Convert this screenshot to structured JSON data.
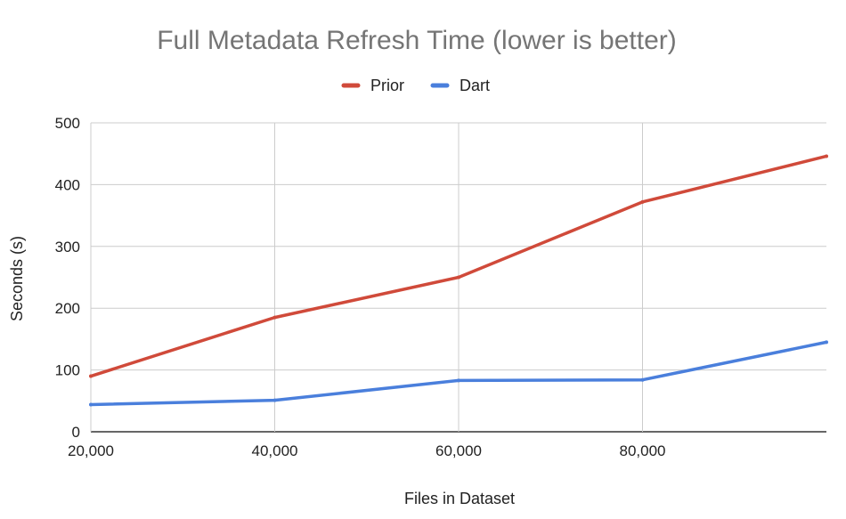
{
  "chart_data": {
    "type": "line",
    "title": "Full Metadata Refresh Time (lower is better)",
    "xlabel": "Files in Dataset",
    "ylabel": "Seconds (s)",
    "x": [
      20000,
      40000,
      60000,
      80000,
      100000
    ],
    "x_tick_labels": [
      "20,000",
      "40,000",
      "60,000",
      "80,000"
    ],
    "x_ticks": [
      20000,
      40000,
      60000,
      80000
    ],
    "xlim": [
      20000,
      100000
    ],
    "ylim": [
      0,
      500
    ],
    "y_ticks": [
      0,
      100,
      200,
      300,
      400,
      500
    ],
    "y_tick_labels": [
      "0",
      "100",
      "200",
      "300",
      "400",
      "500"
    ],
    "grid": true,
    "legend_position": "top",
    "series": [
      {
        "name": "Prior",
        "color": "#d04a3a",
        "values": [
          90,
          185,
          250,
          372,
          446
        ]
      },
      {
        "name": "Dart",
        "color": "#4a7fdc",
        "values": [
          44,
          51,
          83,
          84,
          145
        ]
      }
    ]
  }
}
